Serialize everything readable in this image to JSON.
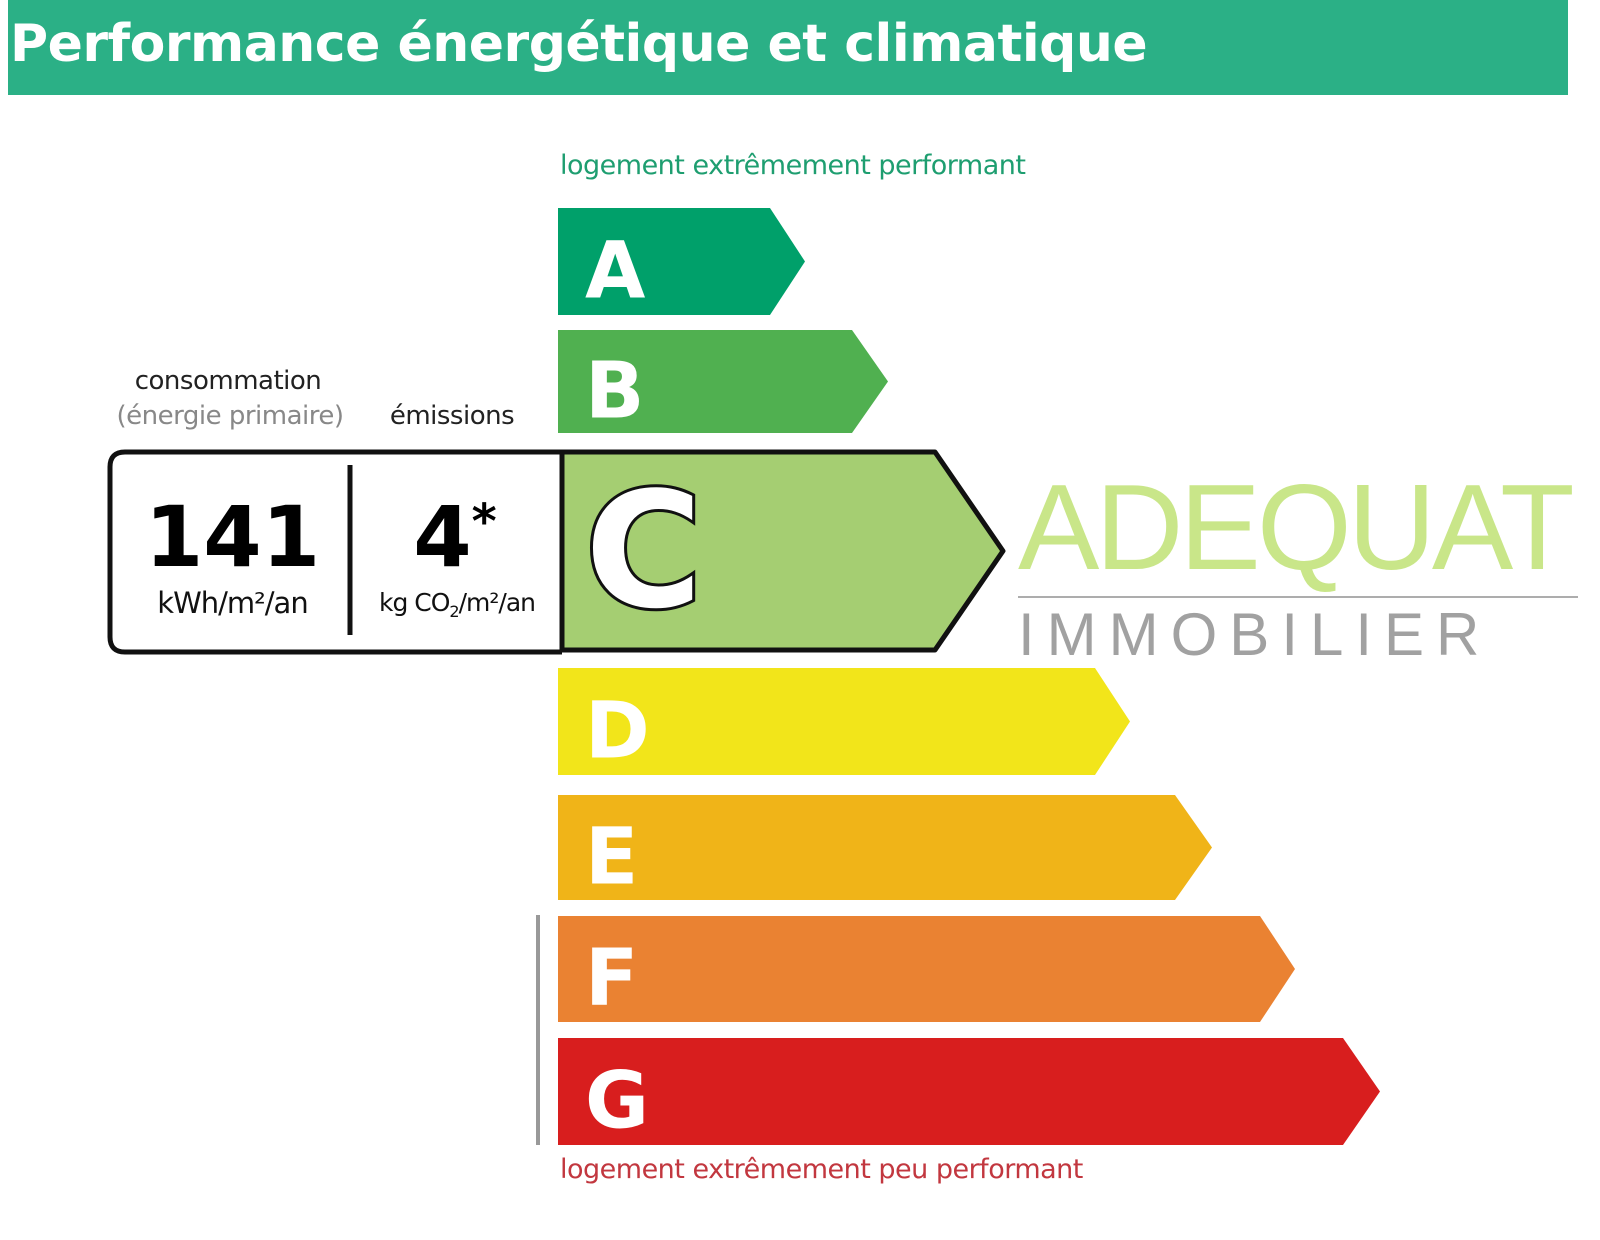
{
  "header": {
    "title": "Performance énergétique et climatique"
  },
  "scale": {
    "top_caption": "logement extrêmement performant",
    "bottom_caption": "logement extrêmement peu performant",
    "classes": [
      {
        "letter": "A",
        "color": "#00a06a"
      },
      {
        "letter": "B",
        "color": "#50b050"
      },
      {
        "letter": "C",
        "color": "#a5ce72"
      },
      {
        "letter": "D",
        "color": "#f2e51a"
      },
      {
        "letter": "E",
        "color": "#f0b418"
      },
      {
        "letter": "F",
        "color": "#ea8232"
      },
      {
        "letter": "G",
        "color": "#d81e1e"
      }
    ],
    "current_class": "C"
  },
  "consumption": {
    "label": "consommation",
    "sublabel": "(énergie primaire)",
    "value": "141",
    "unit": "kWh/m²/an"
  },
  "emissions": {
    "label": "émissions",
    "value": "4",
    "marker": "*",
    "unit_prefix": "kg CO",
    "unit_sub": "2",
    "unit_suffix": "/m²/an"
  },
  "watermark": {
    "brand": "ADEQUAT",
    "sub": "IMMOBILIER"
  }
}
